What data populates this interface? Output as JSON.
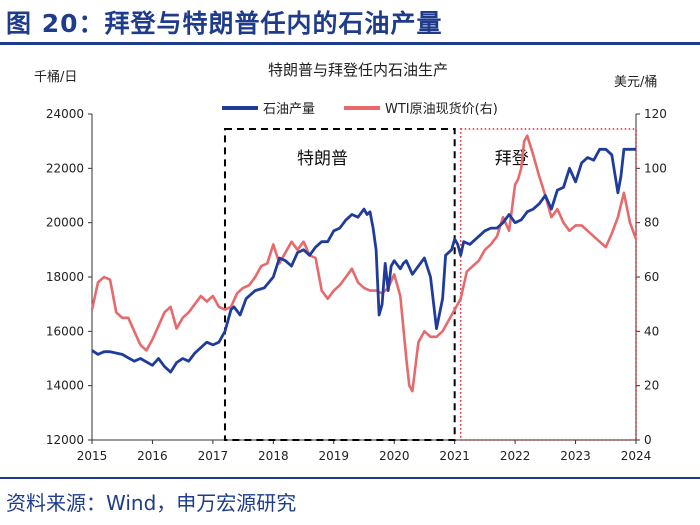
{
  "figure_title": "图 20：拜登与特朗普任内的石油产量",
  "source": "资料来源：Wind，申万宏源研究",
  "colors": {
    "production": "#1f3c9c",
    "wti": "#e8696c",
    "title": "#1f3c8c",
    "box_dotted": "#e0202a",
    "box_dashed": "#000000"
  },
  "chart_data": {
    "type": "line",
    "title": "特朗普与拜登任内石油生产",
    "ylabel_left": "千桶/日",
    "ylabel_right": "美元/桶",
    "ylim_left": [
      12000,
      24000
    ],
    "ylim_right": [
      0,
      120
    ],
    "xlim": [
      2015,
      2024
    ],
    "x_ticks": [
      "2015",
      "2016",
      "2017",
      "2018",
      "2019",
      "2020",
      "2021",
      "2022",
      "2023",
      "2024"
    ],
    "y_ticks_left": [
      "12000",
      "14000",
      "16000",
      "18000",
      "20000",
      "22000",
      "24000"
    ],
    "y_ticks_right": [
      "0",
      "20",
      "40",
      "60",
      "80",
      "100",
      "120"
    ],
    "annotations": [
      {
        "label": "特朗普",
        "x_start": 2017.2,
        "x_end": 2021.0,
        "style": "dashed"
      },
      {
        "label": "拜登",
        "x_start": 2021.1,
        "x_end": 2024.0,
        "style": "dotted"
      }
    ],
    "series": [
      {
        "name": "石油产量",
        "axis": "left",
        "x": [
          2015.0,
          2015.1,
          2015.2,
          2015.3,
          2015.5,
          2015.7,
          2015.8,
          2016.0,
          2016.1,
          2016.2,
          2016.3,
          2016.4,
          2016.5,
          2016.6,
          2016.7,
          2016.8,
          2016.9,
          2017.0,
          2017.1,
          2017.2,
          2017.3,
          2017.35,
          2017.45,
          2017.55,
          2017.7,
          2017.85,
          2018.0,
          2018.1,
          2018.2,
          2018.3,
          2018.4,
          2018.5,
          2018.6,
          2018.7,
          2018.8,
          2018.9,
          2019.0,
          2019.1,
          2019.2,
          2019.3,
          2019.4,
          2019.5,
          2019.55,
          2019.6,
          2019.65,
          2019.7,
          2019.75,
          2019.8,
          2019.85,
          2019.9,
          2019.95,
          2020.0,
          2020.1,
          2020.15,
          2020.2,
          2020.3,
          2020.4,
          2020.5,
          2020.6,
          2020.7,
          2020.8,
          2020.85,
          2020.95,
          2021.0,
          2021.05,
          2021.1,
          2021.15,
          2021.25,
          2021.4,
          2021.5,
          2021.6,
          2021.7,
          2021.8,
          2021.9,
          2022.0,
          2022.1,
          2022.2,
          2022.3,
          2022.4,
          2022.5,
          2022.6,
          2022.7,
          2022.8,
          2022.9,
          2023.0,
          2023.1,
          2023.2,
          2023.3,
          2023.4,
          2023.5,
          2023.6,
          2023.7,
          2023.75,
          2023.8,
          2023.9,
          2024.0
        ],
        "values": [
          15300,
          15150,
          15250,
          15250,
          15150,
          14900,
          15000,
          14750,
          15000,
          14700,
          14500,
          14850,
          15000,
          14900,
          15200,
          15400,
          15600,
          15500,
          15600,
          16000,
          16800,
          16900,
          16600,
          17200,
          17500,
          17600,
          18000,
          18700,
          18600,
          18400,
          18900,
          19000,
          18800,
          19100,
          19300,
          19300,
          19700,
          19800,
          20100,
          20300,
          20200,
          20500,
          20300,
          20400,
          19800,
          19000,
          16600,
          17000,
          18500,
          17500,
          18400,
          18600,
          18300,
          18500,
          18600,
          18100,
          18400,
          18700,
          18000,
          16100,
          17200,
          18800,
          19000,
          19400,
          19200,
          18800,
          19300,
          19200,
          19500,
          19700,
          19800,
          19800,
          20000,
          20300,
          20000,
          20100,
          20400,
          20500,
          20700,
          21000,
          20500,
          21200,
          21300,
          22000,
          21500,
          22200,
          22400,
          22300,
          22700,
          22700,
          22500,
          21100,
          21700,
          22700,
          22700,
          22700
        ]
      },
      {
        "name": "WTI原油现货价(右)",
        "axis": "right",
        "x": [
          2015.0,
          2015.1,
          2015.2,
          2015.3,
          2015.4,
          2015.5,
          2015.6,
          2015.7,
          2015.8,
          2015.9,
          2016.0,
          2016.1,
          2016.2,
          2016.3,
          2016.4,
          2016.5,
          2016.6,
          2016.7,
          2016.8,
          2016.9,
          2017.0,
          2017.1,
          2017.2,
          2017.3,
          2017.4,
          2017.5,
          2017.6,
          2017.7,
          2017.8,
          2017.9,
          2018.0,
          2018.1,
          2018.2,
          2018.3,
          2018.4,
          2018.5,
          2018.6,
          2018.7,
          2018.8,
          2018.9,
          2019.0,
          2019.1,
          2019.2,
          2019.3,
          2019.4,
          2019.5,
          2019.6,
          2019.7,
          2019.8,
          2019.9,
          2020.0,
          2020.1,
          2020.2,
          2020.25,
          2020.3,
          2020.35,
          2020.4,
          2020.5,
          2020.6,
          2020.7,
          2020.8,
          2020.9,
          2021.0,
          2021.1,
          2021.2,
          2021.3,
          2021.4,
          2021.5,
          2021.6,
          2021.7,
          2021.8,
          2021.9,
          2022.0,
          2022.05,
          2022.1,
          2022.15,
          2022.2,
          2022.3,
          2022.4,
          2022.5,
          2022.6,
          2022.7,
          2022.8,
          2022.9,
          2023.0,
          2023.1,
          2023.2,
          2023.3,
          2023.4,
          2023.5,
          2023.6,
          2023.7,
          2023.8,
          2023.9,
          2024.0
        ],
        "values": [
          48,
          58,
          60,
          59,
          47,
          45,
          45,
          40,
          35,
          33,
          37,
          42,
          47,
          49,
          41,
          45,
          47,
          50,
          53,
          51,
          53,
          49,
          48,
          49,
          54,
          56,
          57,
          60,
          64,
          65,
          72,
          65,
          69,
          73,
          70,
          73,
          68,
          67,
          55,
          52,
          55,
          57,
          60,
          63,
          58,
          56,
          55,
          55,
          54,
          56,
          61,
          53,
          30,
          20,
          18,
          27,
          36,
          40,
          38,
          38,
          40,
          44,
          48,
          52,
          62,
          64,
          66,
          70,
          72,
          75,
          82,
          77,
          94,
          96,
          100,
          110,
          112,
          105,
          97,
          90,
          82,
          85,
          80,
          77,
          79,
          79,
          77,
          75,
          73,
          71,
          76,
          82,
          91,
          80,
          74
        ]
      }
    ]
  }
}
